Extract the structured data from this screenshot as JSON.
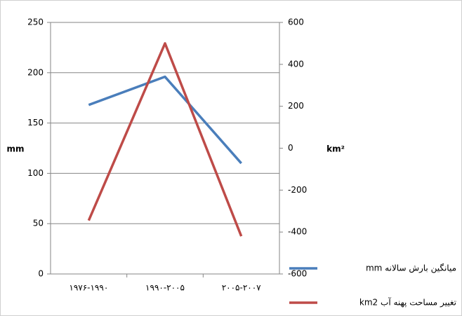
{
  "chart_data": {
    "type": "line",
    "categories": [
      "۱۹۷۶-۱۹۹۰",
      "۱۹۹۰-۲۰۰۵",
      "۲۰۰۵-۲۰۰۷"
    ],
    "ylabel": "mm",
    "y2label": "km²",
    "ylim": [
      0,
      250
    ],
    "yticks": [
      0,
      50,
      100,
      150,
      200,
      250
    ],
    "y2lim": [
      -600,
      600
    ],
    "y2ticks": [
      -600,
      -400,
      -200,
      0,
      200,
      400,
      600
    ],
    "grid": true,
    "legend": "right",
    "series": [
      {
        "name": "میانگین بارش سالانه mm",
        "color": "#4a7ebb",
        "values": [
          168,
          196,
          110
        ]
      },
      {
        "name": "تغییر مساحت پهنه آب km2",
        "color": "#be4b48",
        "axis": "y2",
        "values": [
          -345,
          500,
          -420
        ]
      }
    ]
  }
}
